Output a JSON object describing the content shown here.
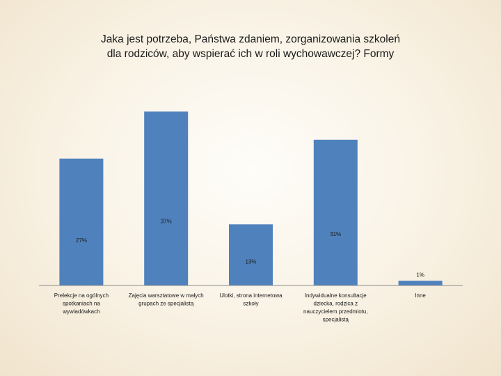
{
  "chart_data": {
    "type": "bar",
    "title_lines": [
      "Jaka jest potrzeba, Państwa zdaniem, zorganizowania szkoleń",
      "dla rodziców, aby wspierać ich w roli wychowawczej? Formy"
    ],
    "categories": [
      [
        "Prelekcje na ogólnych",
        "spotkaniach na",
        "wywiadówkach"
      ],
      [
        "Zajęcia warsztatowe w małych",
        "grupach ze specjalistą"
      ],
      [
        "Ulotki, strona internetowa",
        "szkoły"
      ],
      [
        "Indywidualne konsultacje",
        "dziecka, rodzica z",
        "nauczycielem przedmiotu,",
        "specjalistą"
      ],
      [
        "Inne"
      ]
    ],
    "values": [
      27,
      37,
      13,
      31,
      1
    ],
    "data_labels": [
      "27%",
      "37%",
      "13%",
      "31%",
      "1%"
    ],
    "ylim": [
      0,
      40
    ],
    "bar_color": "#4f81bd",
    "grid": false,
    "legend": "none"
  }
}
